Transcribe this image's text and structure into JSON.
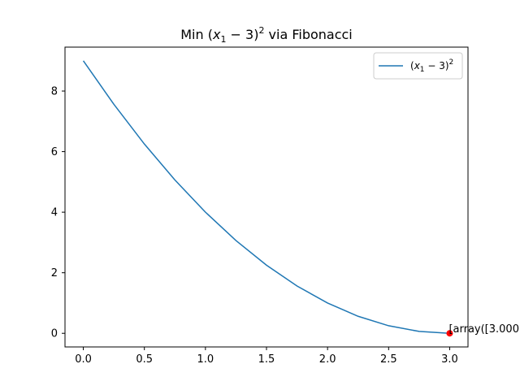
{
  "chart_data": {
    "type": "line",
    "title_parts": {
      "pre": "Min (",
      "var": "x",
      "sub": "1",
      "mid": " − 3)",
      "sup": "2",
      "post": " via Fibonacci"
    },
    "xlabel": "",
    "ylabel": "",
    "xlim": [
      -0.15,
      3.15
    ],
    "ylim": [
      -0.45,
      9.45
    ],
    "xticks": [
      0.0,
      0.5,
      1.0,
      1.5,
      2.0,
      2.5,
      3.0
    ],
    "xtick_labels": [
      "0.0",
      "0.5",
      "1.0",
      "1.5",
      "2.0",
      "2.5",
      "3.0"
    ],
    "yticks": [
      0,
      2,
      4,
      6,
      8
    ],
    "ytick_labels": [
      "0",
      "2",
      "4",
      "6",
      "8"
    ],
    "grid": false,
    "legend_position": "top-right",
    "series": [
      {
        "name_parts": {
          "pre": "(",
          "var": "x",
          "sub": "1",
          "mid": " − 3)",
          "sup": "2"
        },
        "color": "#1f77b4",
        "x": [
          0.0,
          0.25,
          0.5,
          0.75,
          1.0,
          1.25,
          1.5,
          1.75,
          2.0,
          2.25,
          2.5,
          2.75,
          3.0
        ],
        "y": [
          9.0,
          7.5625,
          6.25,
          5.0625,
          4.0,
          3.0625,
          2.25,
          1.5625,
          1.0,
          0.5625,
          0.25,
          0.0625,
          0.0
        ]
      }
    ],
    "minimum_point": {
      "x": 3.0,
      "y": 0.0,
      "color": "#ff0000",
      "label": "[array([3.000"
    }
  }
}
